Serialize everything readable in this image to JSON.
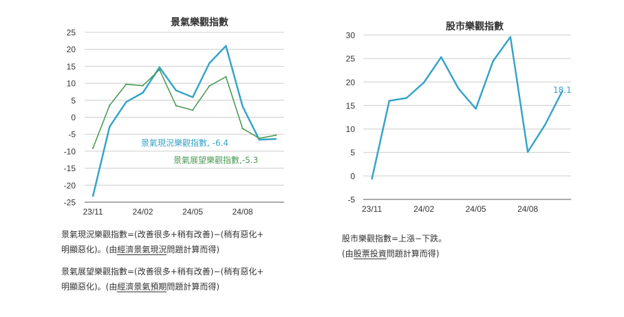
{
  "colors": {
    "blue": "#35a3c8",
    "green": "#4c9a55",
    "grid": "#cccccc",
    "axis": "#555555",
    "title": "#333333"
  },
  "chart_data": [
    {
      "type": "line",
      "title": "景氣樂觀指數",
      "x_tick_labels": [
        "23/11",
        "24/02",
        "24/05",
        "24/08"
      ],
      "x": [
        "23/11",
        "23/12",
        "24/01",
        "24/02",
        "24/03",
        "24/04",
        "24/05",
        "24/06",
        "24/07",
        "24/08",
        "24/09",
        "24/10"
      ],
      "ylim": [
        -25,
        25
      ],
      "yticks": [
        25,
        20,
        15,
        10,
        5,
        0,
        -5,
        -10,
        -15,
        -20,
        -25
      ],
      "grid": true,
      "series": [
        {
          "name": "景氣現況樂觀指數",
          "color": "#35a3c8",
          "values": [
            -23.2,
            -2.8,
            4.5,
            7.2,
            14.7,
            7.9,
            5.9,
            15.9,
            21.0,
            3.2,
            -6.6,
            -6.4
          ],
          "label": "景氣現況樂觀指數, -6.4"
        },
        {
          "name": "景氣展望樂觀指數",
          "color": "#4c9a55",
          "values": [
            -9.1,
            3.5,
            9.7,
            9.3,
            14.0,
            3.4,
            2.1,
            9.2,
            11.9,
            -3.3,
            -6.2,
            -5.3
          ],
          "label": "景氣展望樂觀指數,-5.3"
        }
      ]
    },
    {
      "type": "line",
      "title": "股市樂觀指數",
      "x_tick_labels": [
        "23/11",
        "24/02",
        "24/05",
        "24/08"
      ],
      "x": [
        "23/11",
        "23/12",
        "24/01",
        "24/02",
        "24/03",
        "24/04",
        "24/05",
        "24/06",
        "24/07",
        "24/08",
        "24/09",
        "24/10"
      ],
      "ylim": [
        -5,
        30
      ],
      "yticks": [
        30,
        25,
        20,
        15,
        10,
        5,
        0,
        -5
      ],
      "grid": true,
      "series": [
        {
          "name": "股市樂觀指數",
          "color": "#35a3c8",
          "values": [
            -0.6,
            16.0,
            16.6,
            19.9,
            25.3,
            18.6,
            14.3,
            24.5,
            29.6,
            5.1,
            10.9,
            18.1
          ],
          "label": "18.1"
        }
      ]
    }
  ],
  "notes": {
    "left1": {
      "p1": "景氣現況樂觀指數=(改善很多+稍有改善)−(稍有惡化+",
      "p2": "明顯惡化)。(由",
      "u": "經濟景氣現況",
      "p3": "問題計算而得)"
    },
    "left2": {
      "p1": "景氣展望樂觀指數=(改善很多+稍有改善)−(稍有惡化+",
      "p2": "明顯惡化)。(由",
      "u": "經濟景氣預期",
      "p3": "問題計算而得)"
    },
    "right": {
      "p1": "股市樂觀指數=上漲−下跌。",
      "p2": "(由",
      "u": "股票投資",
      "p3": "問題計算而得)"
    }
  }
}
